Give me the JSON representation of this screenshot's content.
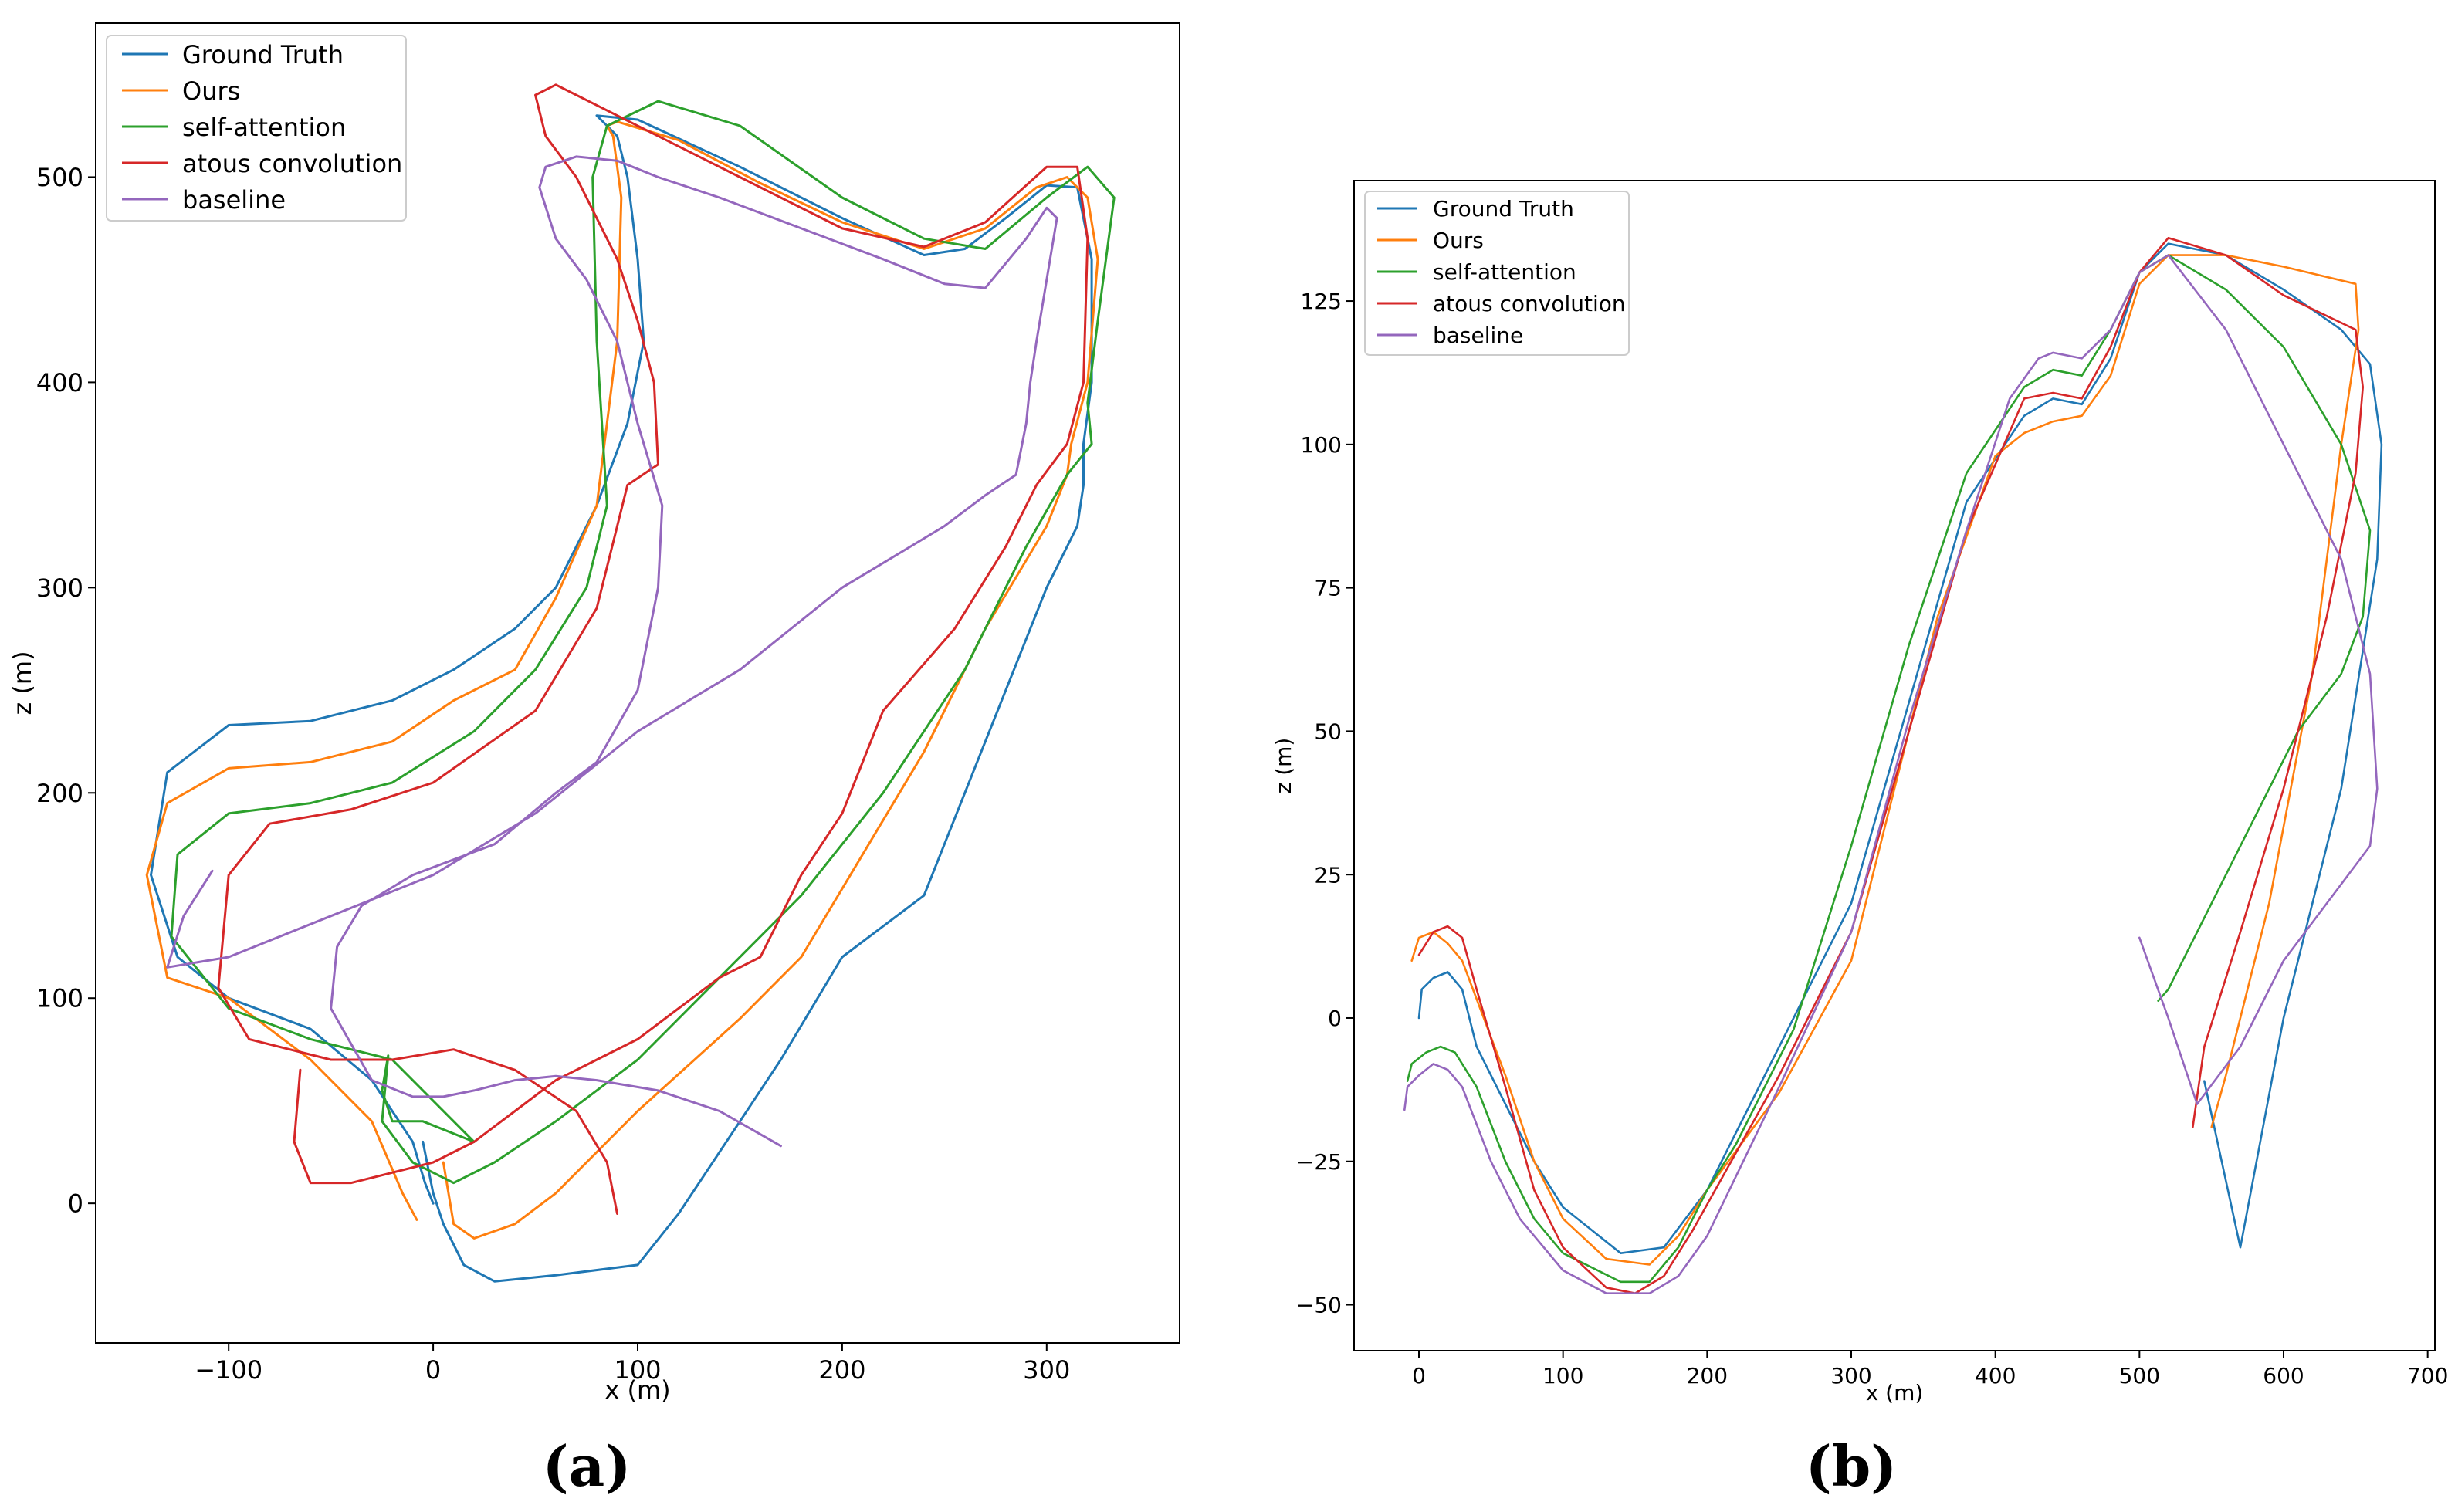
{
  "chart_data": [
    {
      "type": "line",
      "caption": "(a)",
      "xlabel": "x (m)",
      "ylabel": "z (m)",
      "xlim": [
        -165,
        365
      ],
      "ylim": [
        -68,
        575
      ],
      "xticks": [
        -100,
        0,
        100,
        200,
        300
      ],
      "yticks": [
        0,
        100,
        200,
        300,
        400,
        500
      ],
      "xtick_labels": [
        "−100",
        "0",
        "100",
        "200",
        "300"
      ],
      "ytick_labels": [
        "0",
        "100",
        "200",
        "300",
        "400",
        "500"
      ],
      "legend": {
        "placement": "top-left",
        "entries": [
          "Ground Truth",
          "Ours",
          "self-attention",
          "atous convolution",
          "baseline"
        ]
      },
      "series": [
        {
          "name": "Ground Truth",
          "color": "#1f77b4",
          "x": [
            0,
            -4,
            -10,
            -30,
            -60,
            -100,
            -125,
            -138,
            -130,
            -100,
            -60,
            -20,
            10,
            40,
            60,
            80,
            95,
            103,
            100,
            95,
            90,
            85,
            80,
            100,
            150,
            200,
            240,
            260,
            280,
            300,
            315,
            322,
            322,
            318,
            318,
            315,
            300,
            280,
            260,
            240,
            200,
            170,
            150,
            120,
            100,
            60,
            30,
            15,
            5,
            0,
            -5
          ],
          "y": [
            0,
            10,
            30,
            60,
            85,
            100,
            120,
            160,
            210,
            233,
            235,
            245,
            260,
            280,
            300,
            340,
            380,
            420,
            460,
            500,
            520,
            525,
            530,
            528,
            505,
            480,
            462,
            465,
            480,
            496,
            495,
            460,
            400,
            370,
            350,
            330,
            300,
            250,
            200,
            150,
            120,
            70,
            40,
            -5,
            -30,
            -35,
            -38,
            -30,
            -10,
            5,
            30
          ]
        },
        {
          "name": "Ours",
          "color": "#ff7f0e",
          "x": [
            -8,
            -15,
            -30,
            -60,
            -100,
            -130,
            -140,
            -130,
            -100,
            -60,
            -20,
            10,
            40,
            60,
            80,
            90,
            92,
            88,
            85,
            90,
            120,
            160,
            200,
            240,
            270,
            295,
            310,
            320,
            325,
            320,
            312,
            310,
            300,
            270,
            240,
            210,
            180,
            150,
            100,
            60,
            40,
            20,
            10,
            5
          ],
          "y": [
            -8,
            5,
            40,
            70,
            100,
            110,
            160,
            195,
            212,
            215,
            225,
            245,
            260,
            295,
            340,
            420,
            490,
            520,
            525,
            527,
            518,
            497,
            478,
            465,
            475,
            495,
            500,
            490,
            460,
            400,
            370,
            355,
            330,
            280,
            220,
            170,
            120,
            90,
            45,
            5,
            -10,
            -17,
            -10,
            20
          ]
        },
        {
          "name": "self-attention",
          "color": "#2ca02c",
          "x": [
            -22,
            -25,
            -20,
            -5,
            20,
            -20,
            -60,
            -100,
            -128,
            -125,
            -100,
            -60,
            -20,
            20,
            50,
            75,
            85,
            80,
            78,
            85,
            110,
            150,
            200,
            240,
            270,
            300,
            320,
            333,
            325,
            320,
            322,
            310,
            290,
            260,
            220,
            180,
            140,
            100,
            60,
            30,
            10,
            -10,
            -25,
            -22
          ],
          "y": [
            72,
            55,
            40,
            40,
            30,
            70,
            80,
            95,
            130,
            170,
            190,
            195,
            205,
            230,
            260,
            300,
            340,
            420,
            500,
            525,
            537,
            525,
            490,
            470,
            465,
            490,
            505,
            490,
            430,
            390,
            370,
            355,
            320,
            260,
            200,
            150,
            110,
            70,
            40,
            20,
            10,
            20,
            40,
            72
          ]
        },
        {
          "name": "atous convolution",
          "color": "#d62728",
          "x": [
            90,
            85,
            70,
            40,
            10,
            -20,
            -50,
            -90,
            -105,
            -100,
            -80,
            -40,
            0,
            50,
            80,
            95,
            110,
            108,
            100,
            90,
            70,
            55,
            50,
            60,
            90,
            150,
            200,
            240,
            270,
            300,
            315,
            320,
            318,
            310,
            295,
            280,
            255,
            220,
            200,
            180,
            160,
            140,
            120,
            100,
            80,
            60,
            40,
            20,
            0,
            -20,
            -40,
            -60,
            -68,
            -65
          ],
          "y": [
            -5,
            20,
            45,
            65,
            75,
            70,
            70,
            80,
            105,
            160,
            185,
            192,
            205,
            240,
            290,
            350,
            360,
            400,
            430,
            460,
            500,
            520,
            540,
            545,
            530,
            500,
            475,
            466,
            478,
            505,
            505,
            470,
            400,
            370,
            350,
            320,
            280,
            240,
            190,
            160,
            120,
            110,
            95,
            80,
            70,
            60,
            45,
            30,
            20,
            15,
            10,
            10,
            30,
            65
          ]
        },
        {
          "name": "baseline",
          "color": "#9467bd",
          "x": [
            170,
            140,
            110,
            80,
            60,
            40,
            20,
            5,
            -10,
            -30,
            -50,
            -47,
            -35,
            -10,
            30,
            60,
            80,
            100,
            110,
            112,
            100,
            90,
            75,
            60,
            52,
            55,
            70,
            90,
            110,
            140,
            180,
            220,
            250,
            270,
            290,
            300,
            305,
            300,
            295,
            292,
            290,
            285,
            270,
            250,
            200,
            150,
            100,
            50,
            0,
            -50,
            -100,
            -130,
            -122,
            -108
          ],
          "y": [
            28,
            45,
            55,
            60,
            62,
            60,
            55,
            52,
            52,
            60,
            95,
            125,
            145,
            160,
            175,
            200,
            215,
            250,
            300,
            340,
            380,
            420,
            450,
            470,
            495,
            505,
            510,
            508,
            500,
            490,
            475,
            460,
            448,
            446,
            470,
            485,
            480,
            450,
            420,
            400,
            380,
            355,
            345,
            330,
            300,
            260,
            230,
            190,
            160,
            140,
            120,
            115,
            140,
            162
          ]
        }
      ]
    },
    {
      "type": "line",
      "caption": "(b)",
      "xlabel": "x (m)",
      "ylabel": "z (m)",
      "xlim": [
        -45,
        705
      ],
      "ylim": [
        -58,
        146
      ],
      "xticks": [
        0,
        100,
        200,
        300,
        400,
        500,
        600,
        700
      ],
      "yticks": [
        -50,
        -25,
        0,
        25,
        50,
        75,
        100,
        125
      ],
      "xtick_labels": [
        "0",
        "100",
        "200",
        "300",
        "400",
        "500",
        "600",
        "700"
      ],
      "ytick_labels": [
        "−50",
        "−25",
        "0",
        "25",
        "50",
        "75",
        "100",
        "125"
      ],
      "legend": {
        "placement": "top-left",
        "entries": [
          "Ground Truth",
          "Ours",
          "self-attention",
          "atous convolution",
          "baseline"
        ]
      },
      "series": [
        {
          "name": "Ground Truth",
          "color": "#1f77b4",
          "x": [
            0,
            2,
            10,
            20,
            30,
            40,
            60,
            80,
            100,
            140,
            170,
            200,
            230,
            260,
            300,
            340,
            380,
            420,
            440,
            460,
            480,
            500,
            520,
            560,
            600,
            640,
            660,
            668,
            665,
            640,
            600,
            570,
            545
          ],
          "y": [
            0,
            5,
            7,
            8,
            5,
            -5,
            -15,
            -25,
            -33,
            -41,
            -40,
            -30,
            -15,
            0,
            20,
            55,
            90,
            105,
            108,
            107,
            115,
            130,
            135,
            133,
            127,
            120,
            114,
            100,
            80,
            40,
            0,
            -40,
            -11
          ]
        },
        {
          "name": "Ours",
          "color": "#ff7f0e",
          "x": [
            -5,
            0,
            10,
            20,
            30,
            60,
            80,
            100,
            130,
            160,
            180,
            200,
            250,
            300,
            330,
            360,
            400,
            420,
            440,
            460,
            480,
            500,
            520,
            560,
            600,
            650,
            652,
            640,
            620,
            590,
            560,
            550
          ],
          "y": [
            10,
            14,
            15,
            13,
            10,
            -10,
            -25,
            -35,
            -42,
            -43,
            -38,
            -30,
            -13,
            10,
            40,
            70,
            98,
            102,
            104,
            105,
            112,
            128,
            133,
            133,
            131,
            128,
            120,
            100,
            60,
            20,
            -10,
            -19
          ]
        },
        {
          "name": "self-attention",
          "color": "#2ca02c",
          "x": [
            -8,
            -5,
            5,
            15,
            25,
            40,
            60,
            80,
            100,
            140,
            160,
            180,
            200,
            220,
            260,
            300,
            340,
            380,
            420,
            440,
            460,
            480,
            500,
            520,
            560,
            600,
            640,
            660,
            655,
            640,
            610,
            580,
            550,
            520,
            513
          ],
          "y": [
            -11,
            -8,
            -6,
            -5,
            -6,
            -12,
            -25,
            -35,
            -41,
            -46,
            -46,
            -40,
            -30,
            -22,
            -2,
            30,
            65,
            95,
            110,
            113,
            112,
            120,
            130,
            133,
            127,
            117,
            100,
            85,
            70,
            60,
            50,
            35,
            20,
            5,
            3
          ]
        },
        {
          "name": "atous convolution",
          "color": "#d62728",
          "x": [
            0,
            5,
            10,
            20,
            30,
            40,
            60,
            80,
            100,
            130,
            150,
            170,
            190,
            210,
            250,
            300,
            340,
            380,
            420,
            440,
            460,
            480,
            500,
            520,
            560,
            600,
            650,
            655,
            650,
            630,
            600,
            570,
            545,
            537
          ],
          "y": [
            11,
            13,
            15,
            16,
            14,
            5,
            -12,
            -30,
            -40,
            -47,
            -48,
            -45,
            -37,
            -28,
            -10,
            15,
            50,
            85,
            108,
            109,
            108,
            117,
            130,
            136,
            133,
            126,
            120,
            110,
            95,
            70,
            40,
            15,
            -5,
            -19
          ]
        },
        {
          "name": "baseline",
          "color": "#9467bd",
          "x": [
            -10,
            -8,
            0,
            10,
            20,
            30,
            50,
            70,
            100,
            130,
            160,
            180,
            200,
            250,
            300,
            340,
            380,
            410,
            430,
            440,
            460,
            480,
            500,
            520,
            560,
            600,
            640,
            660,
            665,
            660,
            630,
            600,
            570,
            540,
            520,
            500
          ],
          "y": [
            -16,
            -12,
            -10,
            -8,
            -9,
            -12,
            -25,
            -35,
            -44,
            -48,
            -48,
            -45,
            -38,
            -12,
            15,
            52,
            85,
            108,
            115,
            116,
            115,
            120,
            130,
            133,
            120,
            100,
            80,
            60,
            40,
            30,
            20,
            10,
            -5,
            -15,
            0,
            14
          ]
        }
      ]
    }
  ]
}
